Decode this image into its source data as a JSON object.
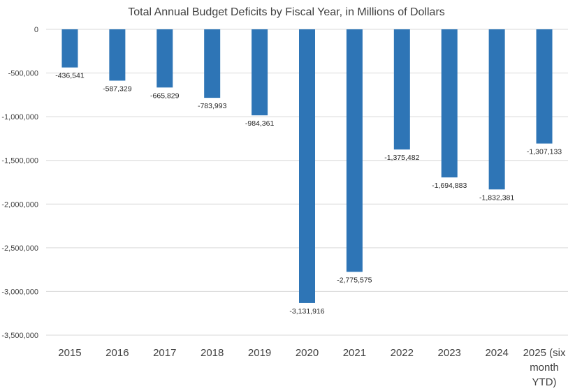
{
  "chart_data": {
    "type": "bar",
    "title": "Total Annual Budget Deficits by Fiscal Year, in Millions of Dollars",
    "xlabel": "",
    "ylabel": "",
    "categories": [
      "2015",
      "2016",
      "2017",
      "2018",
      "2019",
      "2020",
      "2021",
      "2022",
      "2023",
      "2024",
      "2025 (six month YTD)"
    ],
    "values": [
      -436541,
      -587329,
      -665829,
      -783993,
      -984361,
      -3131916,
      -2775575,
      -1375482,
      -1694883,
      -1832381,
      -1307133
    ],
    "data_labels": [
      "-436,541",
      "-587,329",
      "-665,829",
      "-783,993",
      "-984,361",
      "-3,131,916",
      "-2,775,575",
      "-1,375,482",
      "-1,694,883",
      "-1,832,381",
      "-1,307,133"
    ],
    "ylim": [
      -3500000,
      0
    ],
    "yticks": [
      0,
      -500000,
      -1000000,
      -1500000,
      -2000000,
      -2500000,
      -3000000,
      -3500000
    ],
    "ytick_labels": [
      "0",
      "-500,000",
      "-1,000,000",
      "-1,500,000",
      "-2,000,000",
      "-2,500,000",
      "-3,000,000",
      "-3,500,000"
    ],
    "grid": true,
    "legend": "none",
    "colors": {
      "bar": "#2E75B6",
      "grid": "#D9D9D9",
      "text": "#404040"
    }
  }
}
